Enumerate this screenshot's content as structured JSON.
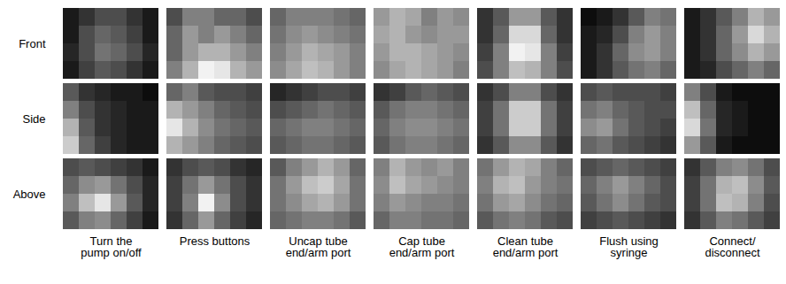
{
  "chart_data": {
    "type": "heatmap",
    "rows": [
      "Front",
      "Side",
      "Above"
    ],
    "columns": [
      "Turn the pump on/off",
      "Press buttons",
      "Uncap tube end/arm port",
      "Cap tube end/arm port",
      "Clean tube end/arm port",
      "Flush using syringe",
      "Connect/ disconnect"
    ],
    "zlim": [
      0,
      1
    ],
    "tick_labels": false,
    "cells": [
      [
        [
          [
            0.1,
            0.2,
            0.3,
            0.3,
            0.2,
            0.1
          ],
          [
            0.1,
            0.3,
            0.4,
            0.35,
            0.25,
            0.1
          ],
          [
            0.15,
            0.3,
            0.45,
            0.4,
            0.3,
            0.15
          ],
          [
            0.1,
            0.25,
            0.35,
            0.3,
            0.2,
            0.1
          ]
        ],
        [
          [
            0.3,
            0.5,
            0.5,
            0.4,
            0.4,
            0.3
          ],
          [
            0.4,
            0.6,
            0.5,
            0.6,
            0.5,
            0.4
          ],
          [
            0.4,
            0.6,
            0.7,
            0.7,
            0.6,
            0.5
          ],
          [
            0.5,
            0.7,
            0.95,
            0.9,
            0.7,
            0.6
          ]
        ],
        [
          [
            0.4,
            0.5,
            0.5,
            0.5,
            0.45,
            0.4
          ],
          [
            0.45,
            0.55,
            0.6,
            0.55,
            0.5,
            0.45
          ],
          [
            0.5,
            0.6,
            0.7,
            0.65,
            0.6,
            0.5
          ],
          [
            0.55,
            0.65,
            0.75,
            0.7,
            0.6,
            0.5
          ]
        ],
        [
          [
            0.6,
            0.7,
            0.65,
            0.5,
            0.6,
            0.55
          ],
          [
            0.65,
            0.7,
            0.6,
            0.55,
            0.6,
            0.6
          ],
          [
            0.6,
            0.7,
            0.7,
            0.65,
            0.6,
            0.55
          ],
          [
            0.55,
            0.65,
            0.7,
            0.65,
            0.6,
            0.5
          ]
        ],
        [
          [
            0.2,
            0.35,
            0.6,
            0.6,
            0.35,
            0.2
          ],
          [
            0.2,
            0.4,
            0.85,
            0.85,
            0.4,
            0.2
          ],
          [
            0.25,
            0.5,
            0.95,
            0.9,
            0.5,
            0.25
          ],
          [
            0.3,
            0.5,
            0.75,
            0.7,
            0.5,
            0.3
          ]
        ],
        [
          [
            0.05,
            0.1,
            0.2,
            0.35,
            0.5,
            0.45
          ],
          [
            0.1,
            0.15,
            0.3,
            0.5,
            0.6,
            0.5
          ],
          [
            0.1,
            0.2,
            0.4,
            0.55,
            0.6,
            0.5
          ],
          [
            0.1,
            0.2,
            0.35,
            0.45,
            0.5,
            0.4
          ]
        ],
        [
          [
            0.1,
            0.2,
            0.35,
            0.5,
            0.7,
            0.6
          ],
          [
            0.1,
            0.2,
            0.4,
            0.6,
            0.85,
            0.7
          ],
          [
            0.1,
            0.2,
            0.4,
            0.55,
            0.7,
            0.6
          ],
          [
            0.1,
            0.15,
            0.3,
            0.4,
            0.5,
            0.4
          ]
        ]
      ],
      [
        [
          [
            0.35,
            0.2,
            0.15,
            0.1,
            0.1,
            0.05
          ],
          [
            0.5,
            0.3,
            0.2,
            0.15,
            0.1,
            0.1
          ],
          [
            0.7,
            0.35,
            0.2,
            0.15,
            0.1,
            0.1
          ],
          [
            0.8,
            0.4,
            0.25,
            0.15,
            0.1,
            0.1
          ]
        ],
        [
          [
            0.4,
            0.5,
            0.35,
            0.3,
            0.3,
            0.25
          ],
          [
            0.7,
            0.6,
            0.5,
            0.4,
            0.35,
            0.3
          ],
          [
            0.9,
            0.7,
            0.55,
            0.45,
            0.4,
            0.35
          ],
          [
            0.7,
            0.6,
            0.5,
            0.4,
            0.35,
            0.3
          ]
        ],
        [
          [
            0.15,
            0.2,
            0.25,
            0.3,
            0.3,
            0.25
          ],
          [
            0.3,
            0.35,
            0.4,
            0.45,
            0.4,
            0.35
          ],
          [
            0.4,
            0.45,
            0.5,
            0.5,
            0.45,
            0.4
          ],
          [
            0.35,
            0.4,
            0.45,
            0.45,
            0.4,
            0.35
          ]
        ],
        [
          [
            0.2,
            0.25,
            0.35,
            0.4,
            0.35,
            0.3
          ],
          [
            0.35,
            0.45,
            0.5,
            0.5,
            0.45,
            0.4
          ],
          [
            0.4,
            0.5,
            0.55,
            0.55,
            0.5,
            0.45
          ],
          [
            0.35,
            0.45,
            0.5,
            0.5,
            0.45,
            0.4
          ]
        ],
        [
          [
            0.2,
            0.3,
            0.5,
            0.5,
            0.3,
            0.2
          ],
          [
            0.25,
            0.45,
            0.8,
            0.8,
            0.45,
            0.25
          ],
          [
            0.25,
            0.45,
            0.8,
            0.8,
            0.45,
            0.25
          ],
          [
            0.2,
            0.35,
            0.55,
            0.55,
            0.35,
            0.2
          ]
        ],
        [
          [
            0.3,
            0.35,
            0.3,
            0.3,
            0.3,
            0.25
          ],
          [
            0.45,
            0.5,
            0.4,
            0.35,
            0.3,
            0.3
          ],
          [
            0.55,
            0.6,
            0.45,
            0.35,
            0.3,
            0.25
          ],
          [
            0.4,
            0.45,
            0.35,
            0.3,
            0.25,
            0.2
          ]
        ],
        [
          [
            0.5,
            0.3,
            0.1,
            0.05,
            0.05,
            0.05
          ],
          [
            0.75,
            0.4,
            0.15,
            0.1,
            0.05,
            0.05
          ],
          [
            0.85,
            0.45,
            0.15,
            0.1,
            0.05,
            0.05
          ],
          [
            0.6,
            0.35,
            0.1,
            0.05,
            0.05,
            0.05
          ]
        ]
      ],
      [
        [
          [
            0.3,
            0.35,
            0.3,
            0.25,
            0.2,
            0.1
          ],
          [
            0.4,
            0.55,
            0.6,
            0.45,
            0.3,
            0.15
          ],
          [
            0.5,
            0.75,
            0.9,
            0.6,
            0.35,
            0.15
          ],
          [
            0.35,
            0.5,
            0.55,
            0.4,
            0.25,
            0.1
          ]
        ],
        [
          [
            0.2,
            0.3,
            0.35,
            0.3,
            0.2,
            0.15
          ],
          [
            0.25,
            0.45,
            0.6,
            0.45,
            0.3,
            0.2
          ],
          [
            0.25,
            0.5,
            0.95,
            0.55,
            0.3,
            0.2
          ],
          [
            0.2,
            0.4,
            0.6,
            0.4,
            0.25,
            0.15
          ]
        ],
        [
          [
            0.35,
            0.5,
            0.6,
            0.7,
            0.6,
            0.4
          ],
          [
            0.45,
            0.6,
            0.75,
            0.8,
            0.65,
            0.45
          ],
          [
            0.45,
            0.55,
            0.65,
            0.7,
            0.6,
            0.45
          ],
          [
            0.4,
            0.45,
            0.5,
            0.5,
            0.45,
            0.35
          ]
        ],
        [
          [
            0.5,
            0.7,
            0.6,
            0.55,
            0.6,
            0.5
          ],
          [
            0.55,
            0.75,
            0.65,
            0.6,
            0.55,
            0.5
          ],
          [
            0.5,
            0.6,
            0.55,
            0.5,
            0.5,
            0.45
          ],
          [
            0.4,
            0.5,
            0.5,
            0.45,
            0.45,
            0.4
          ]
        ],
        [
          [
            0.45,
            0.6,
            0.7,
            0.65,
            0.5,
            0.4
          ],
          [
            0.5,
            0.7,
            0.75,
            0.6,
            0.5,
            0.45
          ],
          [
            0.45,
            0.6,
            0.65,
            0.55,
            0.45,
            0.4
          ],
          [
            0.35,
            0.45,
            0.5,
            0.45,
            0.35,
            0.3
          ]
        ],
        [
          [
            0.3,
            0.35,
            0.4,
            0.35,
            0.3,
            0.25
          ],
          [
            0.4,
            0.5,
            0.6,
            0.5,
            0.4,
            0.3
          ],
          [
            0.35,
            0.45,
            0.55,
            0.45,
            0.35,
            0.3
          ],
          [
            0.25,
            0.3,
            0.35,
            0.3,
            0.25,
            0.2
          ]
        ],
        [
          [
            0.2,
            0.35,
            0.5,
            0.55,
            0.45,
            0.3
          ],
          [
            0.25,
            0.45,
            0.7,
            0.75,
            0.55,
            0.35
          ],
          [
            0.25,
            0.45,
            0.75,
            0.7,
            0.5,
            0.3
          ],
          [
            0.2,
            0.35,
            0.5,
            0.45,
            0.35,
            0.25
          ]
        ]
      ]
    ]
  }
}
